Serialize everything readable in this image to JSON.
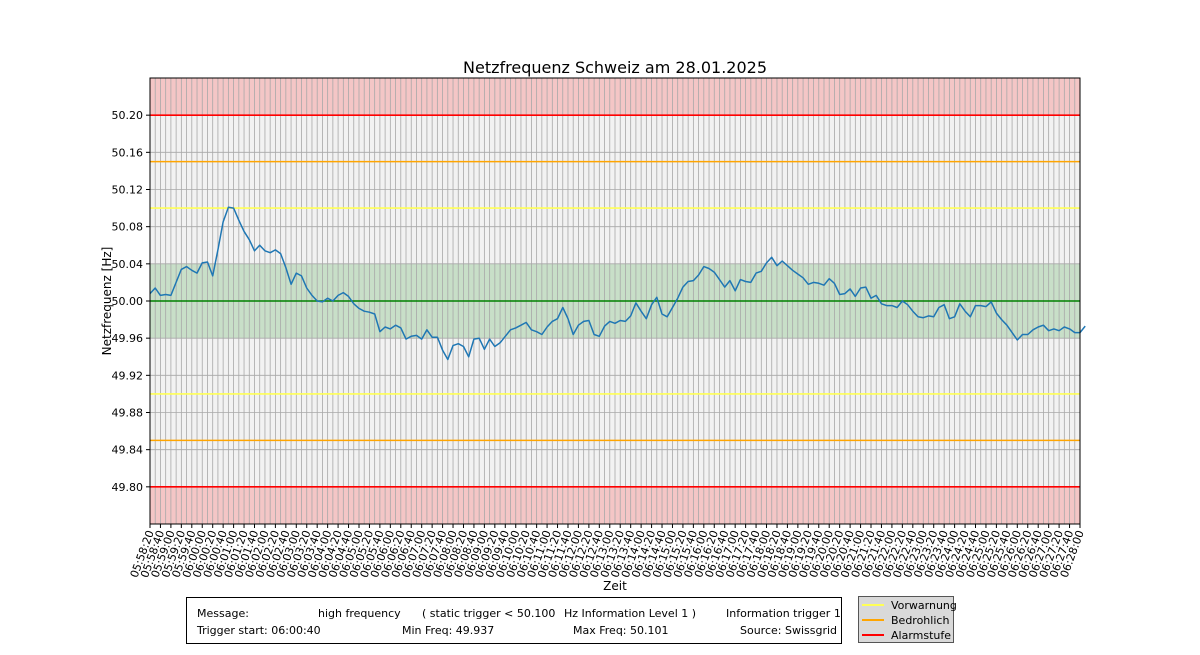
{
  "chart_data": {
    "type": "line",
    "title": "Netzfrequenz Schweiz am 28.01.2025",
    "xlabel": "Zeit",
    "ylabel": "Netzfrequenz [Hz]",
    "ylim": [
      49.76,
      50.24
    ],
    "y_ticks": [
      49.8,
      49.84,
      49.88,
      49.92,
      49.96,
      50.0,
      50.04,
      50.08,
      50.12,
      50.16,
      50.2
    ],
    "x_start": "05:58:20",
    "x_end": "06:28:00",
    "x_tick_labels": [
      "05:58:20",
      "05:58:40",
      "05:59:00",
      "05:59:20",
      "05:59:40",
      "06:00:00",
      "06:00:20",
      "06:00:40",
      "06:01:00",
      "06:01:20",
      "06:01:40",
      "06:02:00",
      "06:02:20",
      "06:02:40",
      "06:03:00",
      "06:03:20",
      "06:03:40",
      "06:04:00",
      "06:04:20",
      "06:04:40",
      "06:05:00",
      "06:05:20",
      "06:05:40",
      "06:06:00",
      "06:06:20",
      "06:06:40",
      "06:07:00",
      "06:07:20",
      "06:07:40",
      "06:08:00",
      "06:08:20",
      "06:08:40",
      "06:09:00",
      "06:09:20",
      "06:09:40",
      "06:10:00",
      "06:10:20",
      "06:10:40",
      "06:11:00",
      "06:11:20",
      "06:11:40",
      "06:12:00",
      "06:12:20",
      "06:12:40",
      "06:13:00",
      "06:13:20",
      "06:13:40",
      "06:14:00",
      "06:14:20",
      "06:14:40",
      "06:15:00",
      "06:15:20",
      "06:15:40",
      "06:16:00",
      "06:16:20",
      "06:16:40",
      "06:17:00",
      "06:17:20",
      "06:17:40",
      "06:18:00",
      "06:18:20",
      "06:18:40",
      "06:19:00",
      "06:19:20",
      "06:19:40",
      "06:20:00",
      "06:20:20",
      "06:20:40",
      "06:21:00",
      "06:21:20",
      "06:21:40",
      "06:22:00",
      "06:22:20",
      "06:22:40",
      "06:23:00",
      "06:23:20",
      "06:23:40",
      "06:24:00",
      "06:24:20",
      "06:24:40",
      "06:25:00",
      "06:25:20",
      "06:25:40",
      "06:26:00",
      "06:26:20",
      "06:26:40",
      "06:27:00",
      "06:27:20",
      "06:27:40",
      "06:28:00"
    ],
    "sample_interval_s": 10,
    "series": [
      {
        "color": "#1f77b4",
        "values": [
          50.008,
          50.014,
          50.006,
          50.007,
          50.006,
          50.02,
          50.034,
          50.037,
          50.033,
          50.03,
          50.041,
          50.042,
          50.027,
          50.055,
          50.085,
          50.101,
          50.1,
          50.087,
          50.075,
          50.066,
          50.054,
          50.06,
          50.054,
          50.052,
          50.055,
          50.051,
          50.036,
          50.018,
          50.03,
          50.027,
          50.014,
          50.006,
          50.0,
          49.999,
          50.003,
          50.0,
          50.006,
          50.009,
          50.005,
          49.997,
          49.992,
          49.989,
          49.988,
          49.986,
          49.967,
          49.972,
          49.97,
          49.974,
          49.971,
          49.959,
          49.962,
          49.963,
          49.959,
          49.969,
          49.961,
          49.961,
          49.947,
          49.937,
          49.952,
          49.954,
          49.951,
          49.94,
          49.959,
          49.96,
          49.948,
          49.959,
          49.951,
          49.955,
          49.962,
          49.969,
          49.971,
          49.974,
          49.977,
          49.969,
          49.967,
          49.964,
          49.972,
          49.978,
          49.981,
          49.993,
          49.981,
          49.964,
          49.974,
          49.978,
          49.979,
          49.964,
          49.962,
          49.973,
          49.978,
          49.976,
          49.979,
          49.978,
          49.984,
          49.998,
          49.989,
          49.981,
          49.996,
          50.004,
          49.986,
          49.983,
          49.993,
          50.003,
          50.015,
          50.021,
          50.022,
          50.028,
          50.037,
          50.035,
          50.031,
          50.023,
          50.015,
          50.022,
          50.011,
          50.023,
          50.021,
          50.02,
          50.03,
          50.032,
          50.041,
          50.047,
          50.038,
          50.043,
          50.038,
          50.033,
          50.029,
          50.025,
          50.018,
          50.02,
          50.019,
          50.017,
          50.024,
          50.019,
          50.007,
          50.008,
          50.013,
          50.005,
          50.014,
          50.015,
          50.003,
          50.006,
          49.997,
          49.995,
          49.995,
          49.993,
          50.0,
          49.996,
          49.989,
          49.983,
          49.982,
          49.984,
          49.983,
          49.993,
          49.996,
          49.981,
          49.983,
          49.997,
          49.989,
          49.983,
          49.995,
          49.995,
          49.994,
          49.999,
          49.987,
          49.98,
          49.974,
          49.966,
          49.958,
          49.964,
          49.964,
          49.969,
          49.972,
          49.974,
          49.968,
          49.97,
          49.968,
          49.972,
          49.97,
          49.966,
          49.966,
          49.973
        ]
      }
    ],
    "bands": {
      "normal_band": [
        49.96,
        50.04
      ],
      "normal_color": "#c8dfc8",
      "alarm_color": "#f4c6c6",
      "plot_background": "#f2f2f2"
    },
    "thresholds": [
      {
        "level": "Vorwarnung",
        "values": [
          49.9,
          50.1
        ],
        "color": "#ffff55"
      },
      {
        "level": "Bedrohlich",
        "values": [
          49.85,
          50.15
        ],
        "color": "#ffa500"
      },
      {
        "level": "Alarmstufe",
        "values": [
          49.8,
          50.2
        ],
        "color": "#ff0000"
      }
    ],
    "reference_line": {
      "value": 50.0,
      "color": "#008000"
    },
    "grid": true,
    "legend_position": "bottom-right"
  },
  "info": {
    "message_label": "Message:",
    "message_value": "high frequency",
    "trigger_text": "( static trigger < 50.100",
    "level_text": "Hz Information Level 1 )",
    "info_trigger": "Information trigger 1",
    "trigger_start": "Trigger start: 06:00:40",
    "min_freq": "Min Freq: 49.937",
    "max_freq": "Max Freq: 50.101",
    "source": "Source: Swissgrid"
  },
  "legend": {
    "items": [
      {
        "label": "Vorwarnung",
        "color": "#ffff55"
      },
      {
        "label": "Bedrohlich",
        "color": "#ffa500"
      },
      {
        "label": "Alarmstufe",
        "color": "#ff0000"
      }
    ]
  }
}
